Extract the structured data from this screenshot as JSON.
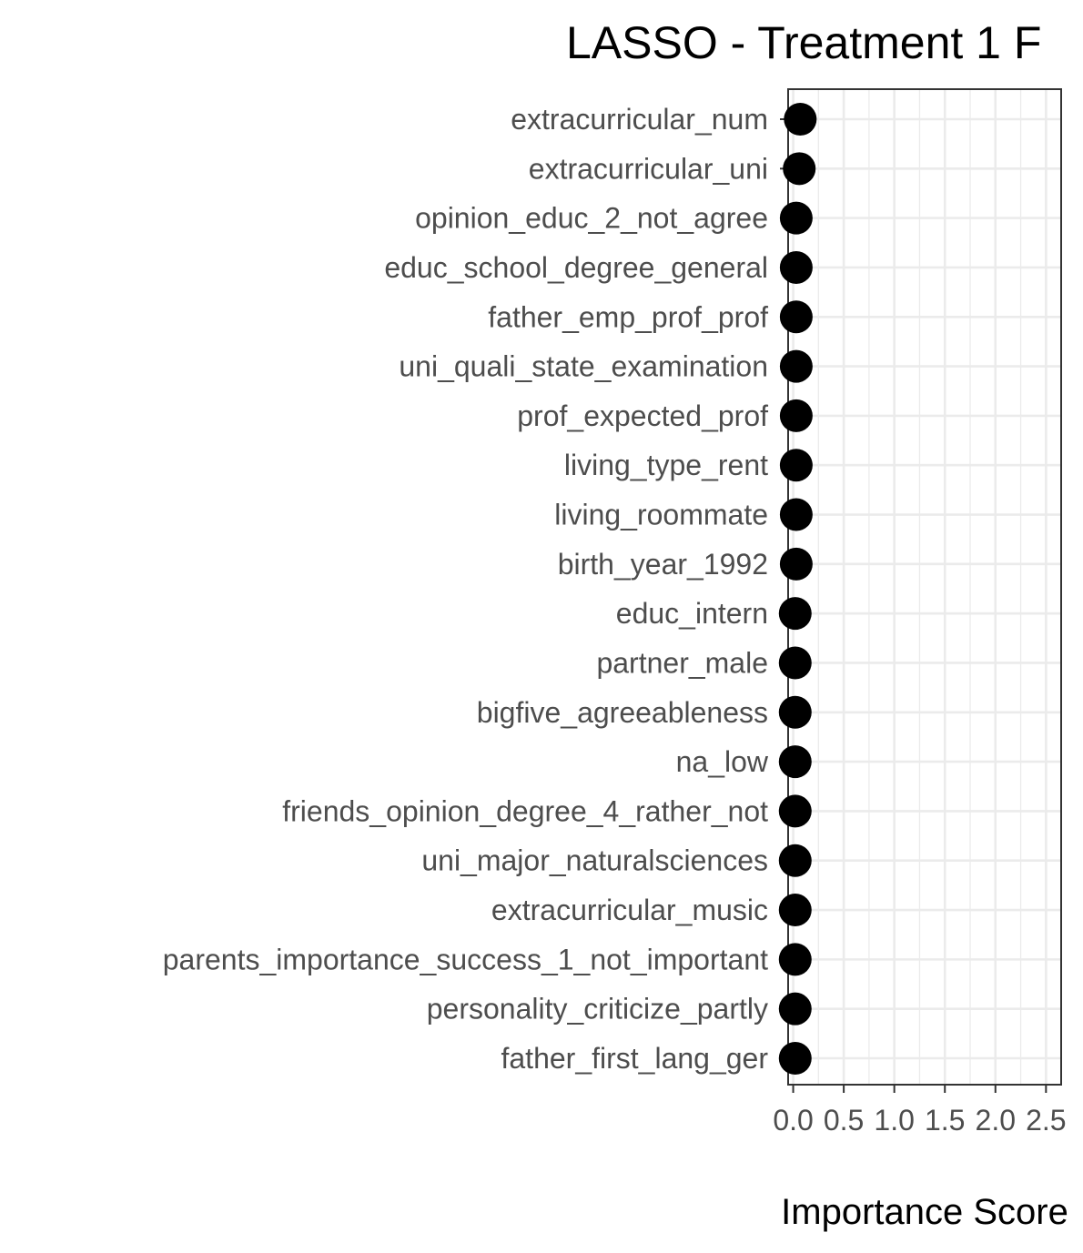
{
  "chart_data": {
    "type": "scatter",
    "title": "LASSO - Treatment 1 F",
    "xlabel": "Importance Score",
    "ylabel": "",
    "xlim": [
      -0.05,
      2.65
    ],
    "x_ticks": [
      0.0,
      0.5,
      1.0,
      1.5,
      2.0,
      2.5
    ],
    "x_tick_labels": [
      "0.0",
      "0.5",
      "1.0",
      "1.5",
      "2.0",
      "2.5"
    ],
    "grid": true,
    "legend": "none",
    "point_color": "#000000",
    "categories": [
      "extracurricular_num",
      "extracurricular_uni",
      "opinion_educ_2_not_agree",
      "educ_school_degree_general",
      "father_emp_prof_prof",
      "uni_quali_state_examination",
      "prof_expected_prof",
      "living_type_rent",
      "living_roommate",
      "birth_year_1992",
      "educ_intern",
      "partner_male",
      "bigfive_agreeableness",
      "na_low",
      "friends_opinion_degree_4_rather_not",
      "uni_major_naturalsciences",
      "extracurricular_music",
      "parents_importance_success_1_not_important",
      "personality_criticize_partly",
      "father_first_lang_ger"
    ],
    "values": [
      0.07,
      0.06,
      0.03,
      0.03,
      0.03,
      0.03,
      0.03,
      0.03,
      0.03,
      0.03,
      0.02,
      0.02,
      0.02,
      0.02,
      0.02,
      0.02,
      0.02,
      0.02,
      0.02,
      0.02
    ]
  }
}
